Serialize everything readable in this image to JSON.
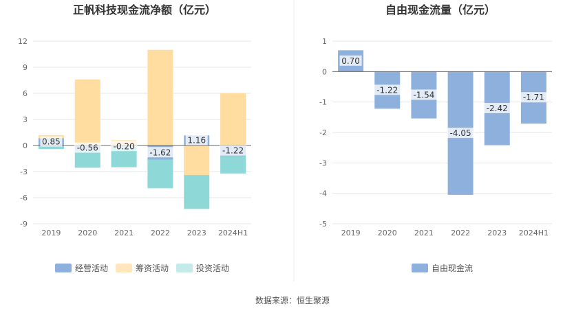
{
  "left_chart": {
    "title": "正帆科技现金流净额（亿元）",
    "legend": [
      {
        "label": "经营活动",
        "color": "#8eb0dc"
      },
      {
        "label": "筹资活动",
        "color": "#ffdca0"
      },
      {
        "label": "投资活动",
        "color": "#c4eaea"
      }
    ]
  },
  "right_chart": {
    "title": "自由现金流量（亿元）",
    "legend": [
      {
        "label": "自由现金流",
        "color": "#8eb0dc"
      }
    ]
  },
  "source": "数据来源：恒生聚源",
  "chart_data": [
    {
      "type": "bar",
      "stacked": true,
      "title": "正帆科技现金流净额（亿元）",
      "categories": [
        "2019",
        "2020",
        "2021",
        "2022",
        "2023",
        "2024H1"
      ],
      "ylim": [
        -9,
        12
      ],
      "yticks": [
        12,
        9,
        6,
        3,
        0,
        -3,
        -6,
        -9
      ],
      "grid": true,
      "legend_position": "bottom",
      "series": [
        {
          "name": "经营活动",
          "color": "#8eb0dc",
          "values": [
            0.85,
            -0.56,
            -0.2,
            -1.62,
            1.16,
            -1.22
          ],
          "labels": [
            "0.85",
            "-0.56",
            "-0.20",
            "-1.62",
            "1.16",
            "-1.22"
          ]
        },
        {
          "name": "筹资活动",
          "color": "#ffdca0",
          "values": [
            0.35,
            7.6,
            0.6,
            11.0,
            -3.4,
            6.0
          ]
        },
        {
          "name": "投资活动",
          "color": "#8ed8d8",
          "values": [
            -0.4,
            -2.0,
            -2.3,
            -3.3,
            -3.9,
            -2.0
          ]
        }
      ]
    },
    {
      "type": "bar",
      "title": "自由现金流量（亿元）",
      "categories": [
        "2019",
        "2020",
        "2021",
        "2022",
        "2023",
        "2024H1"
      ],
      "ylim": [
        -5,
        1
      ],
      "yticks": [
        1,
        0,
        -1,
        -2,
        -3,
        -4,
        -5
      ],
      "grid": true,
      "legend_position": "bottom",
      "series": [
        {
          "name": "自由现金流",
          "color": "#8eb0dc",
          "values": [
            0.7,
            -1.22,
            -1.54,
            -4.05,
            -2.42,
            -1.71
          ],
          "labels": [
            "0.70",
            "-1.22",
            "-1.54",
            "-4.05",
            "-2.42",
            "-1.71"
          ]
        }
      ]
    }
  ]
}
